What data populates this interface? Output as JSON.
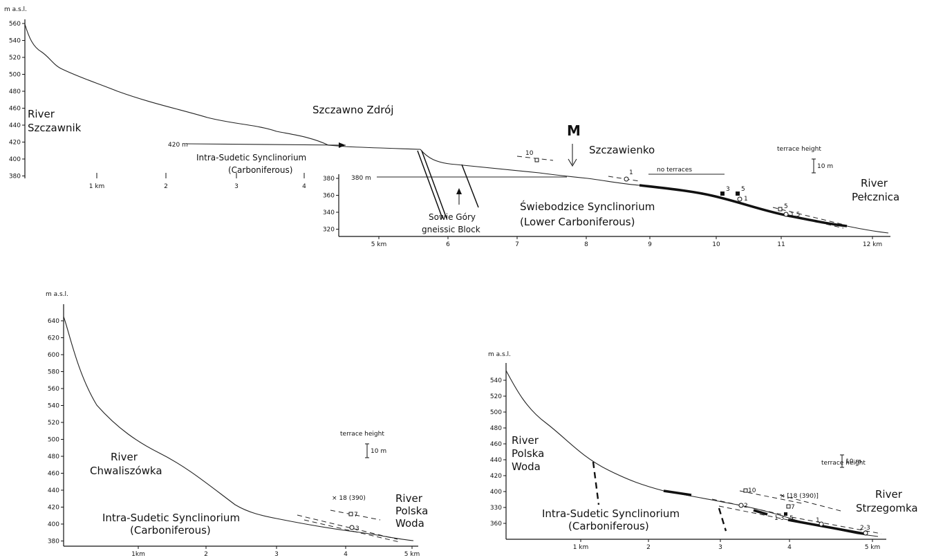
{
  "top": {
    "y_unit": "m a.s.l.",
    "left_y_ticks": [
      "560",
      "540",
      "520",
      "500",
      "480",
      "460",
      "440",
      "420",
      "400",
      "380"
    ],
    "left_x_ticks": [
      "1 km",
      "2",
      "3",
      "4"
    ],
    "right_y_ticks": [
      "380",
      "360",
      "340",
      "320"
    ],
    "right_x_ticks": [
      "5 km",
      "6",
      "7",
      "8",
      "9",
      "10",
      "11",
      "12 km"
    ],
    "river_start": [
      "River",
      "Szczawnik"
    ],
    "river_end": [
      "River",
      "Pełcznica"
    ],
    "town_1": "Szczawno Zdrój",
    "town_2": "Szczawienko",
    "marker": "M",
    "datum_1": "420 m",
    "datum_2": "380 m",
    "unit_1": [
      "Intra-Sudetic Synclinorium",
      "(Carboniferous)"
    ],
    "unit_2": [
      "Sowie Góry",
      "gneissic Block"
    ],
    "unit_3": [
      "Świebodzice Synclinorium",
      "(Lower Carboniferous)"
    ],
    "no_terraces": "no terraces",
    "terrace_scale_title": "terrace height",
    "terrace_scale_value": "10 m",
    "terrace_labels": [
      "10",
      "1",
      "3",
      "5",
      "1",
      "5",
      "1,5"
    ]
  },
  "bottom_left": {
    "y_unit": "m a.s.l.",
    "y_ticks": [
      "640",
      "620",
      "600",
      "580",
      "560",
      "540",
      "520",
      "500",
      "480",
      "460",
      "440",
      "420",
      "400",
      "380"
    ],
    "x_ticks": [
      "1km",
      "2",
      "3",
      "4",
      "5 km"
    ],
    "river_start": [
      "River",
      "Chwaliszówka"
    ],
    "river_end": [
      "River",
      "Polska",
      "Woda"
    ],
    "unit": [
      "Intra-Sudetic Synclinorium",
      "(Carboniferous)"
    ],
    "terrace_scale_title": "terrace height",
    "terrace_scale_value": "10 m",
    "terrace_labels": [
      "× 18 (390)",
      "7",
      "3"
    ]
  },
  "bottom_right": {
    "y_unit": "m a.s.l.",
    "y_ticks": [
      "540",
      "520",
      "500",
      "480",
      "460",
      "440",
      "420",
      "400",
      "330",
      "360"
    ],
    "x_ticks": [
      "1 km",
      "2",
      "3",
      "4",
      "5 km"
    ],
    "river_start": [
      "River",
      "Polska",
      "Woda"
    ],
    "river_end": [
      "River",
      "Strzegomka"
    ],
    "unit": [
      "Intra-Sudetic Synclinorium",
      "(Carboniferous)"
    ],
    "terrace_scale_title": "terrace height",
    "terrace_scale_value": "10 m",
    "terrace_labels": [
      "10",
      "× [18 (390)]",
      "7",
      "2",
      "1 3",
      "5",
      "1",
      "2-3"
    ]
  }
}
